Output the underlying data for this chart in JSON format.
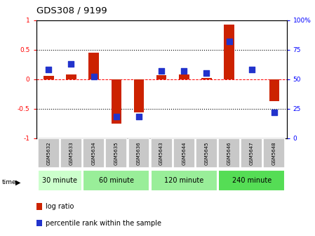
{
  "title": "GDS308 / 9199",
  "samples": [
    "GSM5632",
    "GSM5633",
    "GSM5634",
    "GSM5635",
    "GSM5636",
    "GSM5643",
    "GSM5644",
    "GSM5645",
    "GSM5646",
    "GSM5647",
    "GSM5648"
  ],
  "log_ratio": [
    0.05,
    0.08,
    0.45,
    -0.75,
    -0.56,
    0.07,
    0.08,
    0.02,
    0.92,
    -0.01,
    -0.37
  ],
  "percentile": [
    58,
    63,
    52,
    18,
    18,
    57,
    57,
    55,
    82,
    58,
    22
  ],
  "groups": [
    {
      "label": "30 minute",
      "start": 0,
      "end": 1,
      "color": "#ccffcc"
    },
    {
      "label": "60 minute",
      "start": 2,
      "end": 4,
      "color": "#99ee99"
    },
    {
      "label": "120 minute",
      "start": 5,
      "end": 7,
      "color": "#99ee99"
    },
    {
      "label": "240 minute",
      "start": 8,
      "end": 10,
      "color": "#55dd55"
    }
  ],
  "bar_color_red": "#cc2200",
  "dot_color_blue": "#2233cc",
  "ylim_left": [
    -1,
    1
  ],
  "ylim_right": [
    0,
    100
  ],
  "yticks_left": [
    -1,
    -0.5,
    0,
    0.5,
    1
  ],
  "yticks_right": [
    0,
    25,
    50,
    75,
    100
  ],
  "ytick_labels_left": [
    "-1",
    "-0.5",
    "0",
    "0.5",
    "1"
  ],
  "ytick_labels_right": [
    "0",
    "25",
    "50",
    "75",
    "100%"
  ],
  "dotted_hlines": [
    -0.5,
    0.5
  ],
  "legend_log_ratio": "log ratio",
  "legend_percentile": "percentile rank within the sample",
  "bar_width": 0.45,
  "dot_size": 28
}
